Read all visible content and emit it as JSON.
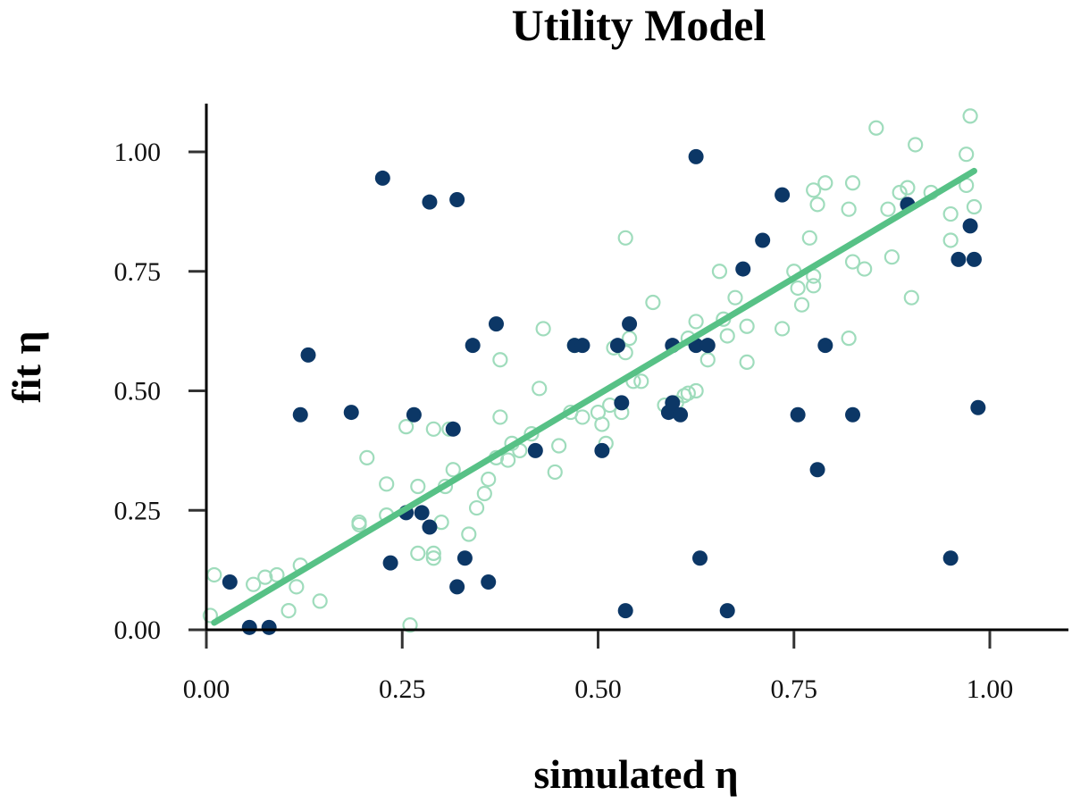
{
  "chart_data": {
    "type": "scatter",
    "title": "Utility Model",
    "xlabel": "simulated η",
    "ylabel": "fit η",
    "xlim": [
      0.0,
      1.1
    ],
    "ylim": [
      0.0,
      1.1
    ],
    "xticks": [
      0.0,
      0.25,
      0.5,
      0.75,
      1.0
    ],
    "xtick_labels": [
      "0.00",
      "0.25",
      "0.50",
      "0.75",
      "1.00"
    ],
    "yticks": [
      0.0,
      0.25,
      0.5,
      0.75,
      1.0
    ],
    "ytick_labels": [
      "0.00",
      "0.25",
      "0.50",
      "0.75",
      "1.00"
    ],
    "grid": false,
    "colors": {
      "highlight_points": "#0c3766",
      "background_points": "#9fdcbc",
      "fit_line": "#57c186"
    },
    "fit_line": {
      "x": [
        0.01,
        0.98
      ],
      "y": [
        0.015,
        0.96
      ]
    },
    "series": [
      {
        "marker": "hollow-circle",
        "points": [
          [
            0.01,
            0.115
          ],
          [
            0.005,
            0.03
          ],
          [
            0.06,
            0.095
          ],
          [
            0.075,
            0.11
          ],
          [
            0.09,
            0.115
          ],
          [
            0.105,
            0.04
          ],
          [
            0.115,
            0.09
          ],
          [
            0.12,
            0.135
          ],
          [
            0.145,
            0.06
          ],
          [
            0.195,
            0.22
          ],
          [
            0.195,
            0.225
          ],
          [
            0.205,
            0.36
          ],
          [
            0.23,
            0.305
          ],
          [
            0.23,
            0.24
          ],
          [
            0.255,
            0.425
          ],
          [
            0.26,
            0.01
          ],
          [
            0.27,
            0.16
          ],
          [
            0.27,
            0.3
          ],
          [
            0.29,
            0.15
          ],
          [
            0.29,
            0.16
          ],
          [
            0.29,
            0.42
          ],
          [
            0.3,
            0.225
          ],
          [
            0.305,
            0.3
          ],
          [
            0.31,
            0.42
          ],
          [
            0.315,
            0.335
          ],
          [
            0.335,
            0.2
          ],
          [
            0.345,
            0.255
          ],
          [
            0.355,
            0.285
          ],
          [
            0.36,
            0.315
          ],
          [
            0.37,
            0.36
          ],
          [
            0.375,
            0.445
          ],
          [
            0.375,
            0.565
          ],
          [
            0.385,
            0.355
          ],
          [
            0.39,
            0.39
          ],
          [
            0.4,
            0.375
          ],
          [
            0.415,
            0.41
          ],
          [
            0.425,
            0.505
          ],
          [
            0.43,
            0.63
          ],
          [
            0.445,
            0.33
          ],
          [
            0.45,
            0.385
          ],
          [
            0.465,
            0.455
          ],
          [
            0.47,
            0.595
          ],
          [
            0.48,
            0.445
          ],
          [
            0.5,
            0.455
          ],
          [
            0.505,
            0.43
          ],
          [
            0.51,
            0.39
          ],
          [
            0.515,
            0.47
          ],
          [
            0.52,
            0.59
          ],
          [
            0.53,
            0.455
          ],
          [
            0.535,
            0.82
          ],
          [
            0.535,
            0.58
          ],
          [
            0.54,
            0.61
          ],
          [
            0.545,
            0.52
          ],
          [
            0.555,
            0.52
          ],
          [
            0.57,
            0.685
          ],
          [
            0.585,
            0.47
          ],
          [
            0.6,
            0.475
          ],
          [
            0.61,
            0.49
          ],
          [
            0.615,
            0.495
          ],
          [
            0.615,
            0.61
          ],
          [
            0.625,
            0.5
          ],
          [
            0.625,
            0.645
          ],
          [
            0.64,
            0.565
          ],
          [
            0.655,
            0.75
          ],
          [
            0.66,
            0.65
          ],
          [
            0.665,
            0.615
          ],
          [
            0.675,
            0.695
          ],
          [
            0.69,
            0.635
          ],
          [
            0.69,
            0.56
          ],
          [
            0.735,
            0.63
          ],
          [
            0.75,
            0.75
          ],
          [
            0.755,
            0.715
          ],
          [
            0.76,
            0.68
          ],
          [
            0.77,
            0.82
          ],
          [
            0.775,
            0.72
          ],
          [
            0.775,
            0.74
          ],
          [
            0.775,
            0.92
          ],
          [
            0.78,
            0.89
          ],
          [
            0.79,
            0.935
          ],
          [
            0.82,
            0.88
          ],
          [
            0.82,
            0.61
          ],
          [
            0.825,
            0.935
          ],
          [
            0.825,
            0.77
          ],
          [
            0.84,
            0.755
          ],
          [
            0.855,
            1.05
          ],
          [
            0.87,
            0.88
          ],
          [
            0.875,
            0.78
          ],
          [
            0.885,
            0.915
          ],
          [
            0.895,
            0.925
          ],
          [
            0.9,
            0.695
          ],
          [
            0.905,
            1.015
          ],
          [
            0.925,
            0.915
          ],
          [
            0.95,
            0.815
          ],
          [
            0.95,
            0.87
          ],
          [
            0.97,
            0.995
          ],
          [
            0.97,
            0.93
          ],
          [
            0.975,
            1.075
          ],
          [
            0.98,
            0.885
          ]
        ]
      },
      {
        "marker": "filled-circle",
        "points": [
          [
            0.03,
            0.1
          ],
          [
            0.055,
            0.005
          ],
          [
            0.08,
            0.005
          ],
          [
            0.12,
            0.45
          ],
          [
            0.13,
            0.575
          ],
          [
            0.185,
            0.455
          ],
          [
            0.225,
            0.945
          ],
          [
            0.235,
            0.14
          ],
          [
            0.255,
            0.245
          ],
          [
            0.265,
            0.45
          ],
          [
            0.275,
            0.245
          ],
          [
            0.285,
            0.215
          ],
          [
            0.285,
            0.895
          ],
          [
            0.315,
            0.42
          ],
          [
            0.32,
            0.9
          ],
          [
            0.32,
            0.09
          ],
          [
            0.33,
            0.15
          ],
          [
            0.34,
            0.595
          ],
          [
            0.36,
            0.1
          ],
          [
            0.37,
            0.64
          ],
          [
            0.42,
            0.375
          ],
          [
            0.47,
            0.595
          ],
          [
            0.48,
            0.595
          ],
          [
            0.505,
            0.375
          ],
          [
            0.525,
            0.595
          ],
          [
            0.53,
            0.475
          ],
          [
            0.535,
            0.04
          ],
          [
            0.54,
            0.64
          ],
          [
            0.59,
            0.455
          ],
          [
            0.595,
            0.475
          ],
          [
            0.595,
            0.595
          ],
          [
            0.605,
            0.45
          ],
          [
            0.625,
            0.99
          ],
          [
            0.625,
            0.595
          ],
          [
            0.63,
            0.15
          ],
          [
            0.64,
            0.595
          ],
          [
            0.665,
            0.04
          ],
          [
            0.685,
            0.755
          ],
          [
            0.71,
            0.815
          ],
          [
            0.735,
            0.91
          ],
          [
            0.755,
            0.45
          ],
          [
            0.78,
            0.335
          ],
          [
            0.79,
            0.595
          ],
          [
            0.825,
            0.45
          ],
          [
            0.895,
            0.89
          ],
          [
            0.95,
            0.15
          ],
          [
            0.96,
            0.775
          ],
          [
            0.975,
            0.845
          ],
          [
            0.98,
            0.775
          ],
          [
            0.985,
            0.465
          ]
        ]
      }
    ]
  }
}
